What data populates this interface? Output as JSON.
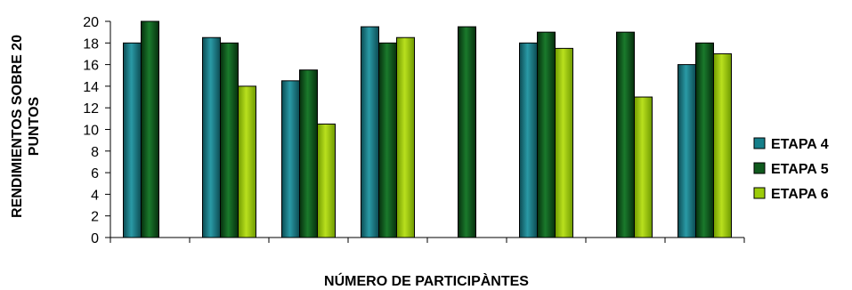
{
  "chart_data": {
    "type": "bar",
    "title": "",
    "xlabel": "NÚMERO DE PARTICIPÀNTES",
    "ylabel": "RENDIMIENTOS SOBRE 20 PUNTOS",
    "ylabel_lines": [
      "RENDIMIENTOS SOBRE 20",
      "PUNTOS"
    ],
    "ylim": [
      0,
      20
    ],
    "yticks": [
      "0",
      "2",
      "4",
      "6",
      "8",
      "10",
      "12",
      "14",
      "16",
      "18",
      "20"
    ],
    "categories": [
      "",
      "",
      "",
      "",
      "",
      "",
      "",
      ""
    ],
    "grid": false,
    "legend_position": "right",
    "series": [
      {
        "name": "ETAPA 4",
        "color": "#167f8a",
        "values": [
          18,
          18.5,
          14.5,
          19.5,
          null,
          18,
          null,
          16
        ]
      },
      {
        "name": "ETAPA 5",
        "color": "#0f5a1d",
        "values": [
          20,
          18,
          15.5,
          18,
          19.5,
          19,
          19,
          18
        ]
      },
      {
        "name": "ETAPA 6",
        "color": "#9ccc0a",
        "values": [
          null,
          14,
          10.5,
          18.5,
          null,
          17.5,
          13,
          17
        ]
      }
    ]
  }
}
